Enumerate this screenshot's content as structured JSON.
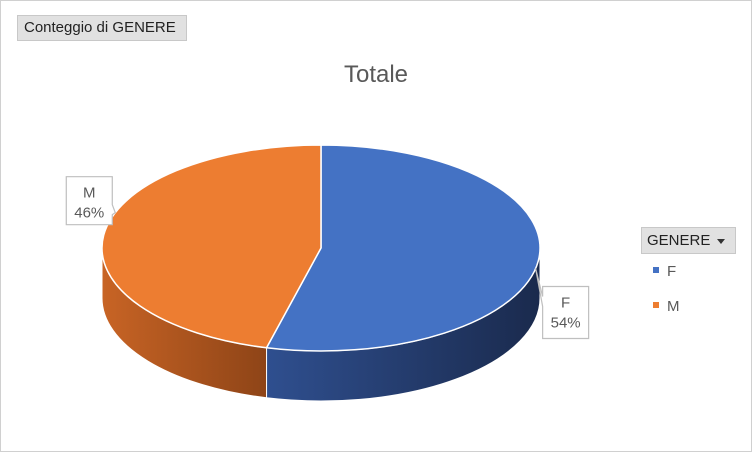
{
  "pivot": {
    "field_button_label": "Conteggio di GENERE"
  },
  "legend": {
    "field_button_label": "GENERE",
    "dropdown_icon": "caret-down-icon"
  },
  "chart_data": {
    "type": "pie",
    "style": "3d",
    "title": "Totale",
    "categories": [
      "F",
      "M"
    ],
    "values": [
      54,
      46
    ],
    "labels": [
      "54%",
      "46%"
    ],
    "colors": [
      "#4472C4",
      "#ED7D31"
    ],
    "legend_position": "right"
  }
}
